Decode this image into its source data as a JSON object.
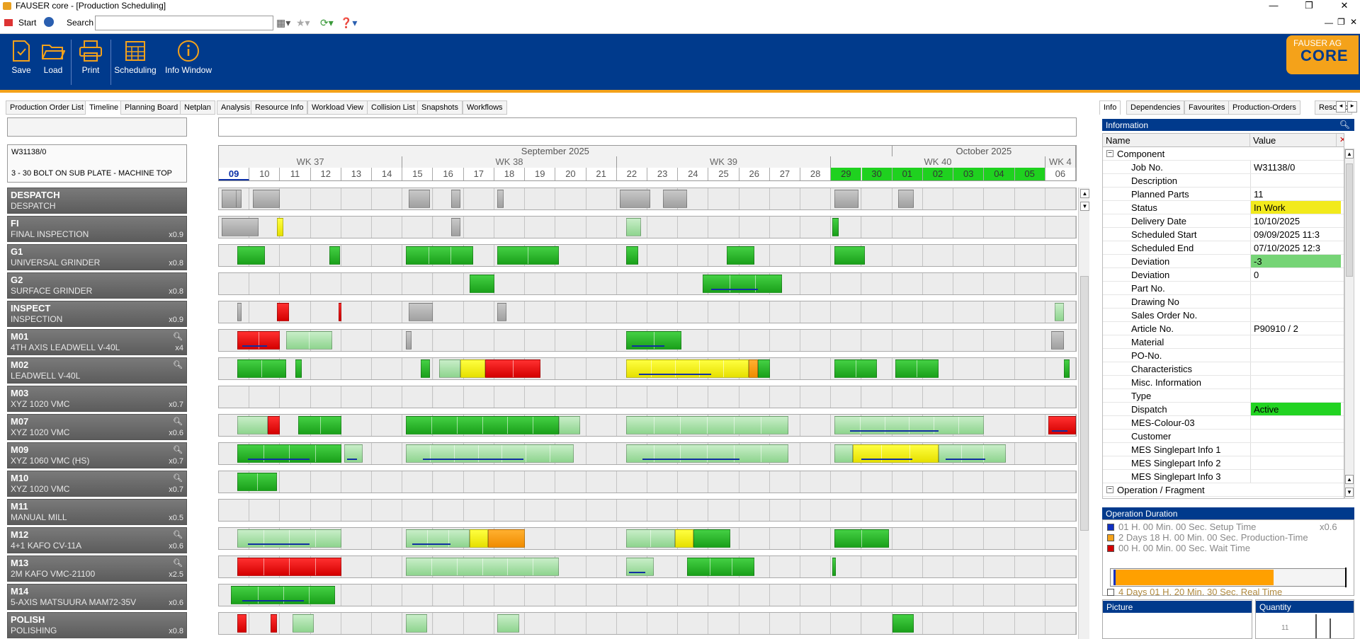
{
  "window": {
    "title": "FAUSER core - [Production Scheduling]"
  },
  "menubar": {
    "start": "Start",
    "search_label": "Search",
    "search_value": ""
  },
  "ribbon": {
    "buttons": [
      {
        "id": "save",
        "label": "Save"
      },
      {
        "id": "load",
        "label": "Load"
      },
      {
        "id": "print",
        "label": "Print"
      },
      {
        "id": "scheduling",
        "label": "Scheduling"
      },
      {
        "id": "info",
        "label": "Info Window"
      }
    ],
    "logo_line1": "FAUSER AG",
    "logo_line2": "CORE",
    "accent": "#003a8c",
    "brand_orange": "#f4a21a"
  },
  "tabs": [
    "Production Order List",
    "Timeline",
    "Planning Board",
    "Netplan",
    "Analysis",
    "Resource Info",
    "Workload View",
    "Collision List",
    "Snapshots",
    "Workflows"
  ],
  "active_tab": "Timeline",
  "job": {
    "id": "W31138/0",
    "description": "3 - 30 BOLT ON SUB PLATE -  MACHINE TOP"
  },
  "resources": [
    {
      "code": "DESPATCH",
      "name": "DESPATCH",
      "factor": "",
      "mag": false
    },
    {
      "code": "FI",
      "name": "FINAL INSPECTION",
      "factor": "x0.9",
      "mag": false
    },
    {
      "code": "G1",
      "name": "UNIVERSAL GRINDER",
      "factor": "x0.8",
      "mag": false
    },
    {
      "code": "G2",
      "name": "SURFACE GRINDER",
      "factor": "x0.8",
      "mag": false
    },
    {
      "code": "INSPECT",
      "name": "INSPECTION",
      "factor": "x0.9",
      "mag": false
    },
    {
      "code": "M01",
      "name": "4TH AXIS LEADWELL V-40L",
      "factor": "x4",
      "mag": true
    },
    {
      "code": "M02",
      "name": "LEADWELL V-40L",
      "factor": "",
      "mag": true
    },
    {
      "code": "M03",
      "name": "XYZ 1020 VMC",
      "factor": "x0.7",
      "mag": false
    },
    {
      "code": "M07",
      "name": "XYZ 1020 VMC",
      "factor": "x0.6",
      "mag": true
    },
    {
      "code": "M09",
      "name": "XYZ 1060 VMC (HS)",
      "factor": "x0.7",
      "mag": true
    },
    {
      "code": "M10",
      "name": "XYZ 1020 VMC",
      "factor": "x0.7",
      "mag": true
    },
    {
      "code": "M11",
      "name": "MANUAL MILL",
      "factor": "x0.5",
      "mag": false
    },
    {
      "code": "M12",
      "name": "4+1 KAFO CV-11A",
      "factor": "x0.6",
      "mag": true
    },
    {
      "code": "M13",
      "name": "2M KAFO VMC-21100",
      "factor": "x2.5",
      "mag": true
    },
    {
      "code": "M14",
      "name": "5-AXIS MATSUURA MAM72-35V",
      "factor": "x0.6",
      "mag": false
    },
    {
      "code": "POLISH",
      "name": "POLISHING",
      "factor": "x0.8",
      "mag": false
    }
  ],
  "timeline": {
    "months": [
      {
        "label": "September 2025",
        "days": 22
      },
      {
        "label": "October 2025",
        "days": 6
      }
    ],
    "weeks": [
      {
        "label": "WK 37",
        "days": 6
      },
      {
        "label": "WK 38",
        "days": 7
      },
      {
        "label": "WK 39",
        "days": 7
      },
      {
        "label": "WK 40",
        "days": 7
      },
      {
        "label": "WK 4",
        "days": 1
      }
    ],
    "days": [
      "09",
      "10",
      "11",
      "12",
      "13",
      "14",
      "15",
      "16",
      "17",
      "18",
      "19",
      "20",
      "21",
      "22",
      "23",
      "24",
      "25",
      "26",
      "27",
      "28",
      "29",
      "30",
      "01",
      "02",
      "03",
      "04",
      "05",
      "06"
    ],
    "today_index": 0,
    "highlight_days": [
      20,
      21,
      22,
      23,
      24,
      25,
      26
    ],
    "rows": [
      [
        [
          0.1,
          0.5,
          "gr"
        ],
        [
          0.55,
          0.2,
          "gr"
        ],
        [
          1.1,
          0.9,
          "gr"
        ],
        [
          6.2,
          0.7,
          "gr"
        ],
        [
          7.6,
          0.3,
          "gr"
        ],
        [
          9.1,
          0.2,
          "gr"
        ],
        [
          13.1,
          1.0,
          "gr"
        ],
        [
          14.5,
          0.8,
          "gr"
        ],
        [
          20.1,
          0.8,
          "gr"
        ],
        [
          22.2,
          0.5,
          "gr"
        ]
      ],
      [
        [
          0.1,
          1.2,
          "gr"
        ],
        [
          1.9,
          0.2,
          "y1"
        ],
        [
          7.6,
          0.3,
          "gr"
        ],
        [
          13.3,
          0.5,
          "g2"
        ],
        [
          20.05,
          0.2,
          "g1"
        ]
      ],
      [
        [
          0.6,
          0.9,
          "g1"
        ],
        [
          3.6,
          0.35,
          "g1"
        ],
        [
          6.1,
          2.2,
          "g1"
        ],
        [
          9.1,
          2.0,
          "g1"
        ],
        [
          13.3,
          0.4,
          "g1"
        ],
        [
          16.6,
          0.9,
          "g1"
        ],
        [
          20.1,
          1.0,
          "g1"
        ]
      ],
      [
        [
          8.2,
          0.8,
          "g1"
        ],
        [
          15.8,
          2.6,
          "g1",
          true
        ]
      ],
      [
        [
          0.6,
          0.15,
          "gr"
        ],
        [
          1.9,
          0.4,
          "r1"
        ],
        [
          3.9,
          0.1,
          "r1"
        ],
        [
          6.2,
          0.8,
          "gr"
        ],
        [
          9.1,
          0.3,
          "gr"
        ],
        [
          27.3,
          0.3,
          "g2"
        ]
      ],
      [
        [
          0.6,
          1.4,
          "r1",
          true
        ],
        [
          2.2,
          1.5,
          "g2"
        ],
        [
          6.1,
          0.2,
          "gr"
        ],
        [
          13.3,
          1.8,
          "g1",
          true
        ],
        [
          27.2,
          0.4,
          "gr"
        ]
      ],
      [
        [
          0.6,
          1.6,
          "g1"
        ],
        [
          2.5,
          0.2,
          "g1"
        ],
        [
          6.6,
          0.3,
          "g1"
        ],
        [
          7.2,
          0.7,
          "g2"
        ],
        [
          7.9,
          0.8,
          "y1"
        ],
        [
          8.7,
          1.8,
          "r1"
        ],
        [
          13.3,
          4.0,
          "y1",
          true
        ],
        [
          17.3,
          0.3,
          "o1"
        ],
        [
          17.6,
          0.4,
          "g1"
        ],
        [
          20.1,
          1.4,
          "g1"
        ],
        [
          22.1,
          1.4,
          "g1"
        ],
        [
          27.6,
          0.2,
          "g1"
        ]
      ],
      [],
      [
        [
          0.6,
          1.0,
          "g2"
        ],
        [
          1.6,
          0.4,
          "r1"
        ],
        [
          2.6,
          1.4,
          "g1"
        ],
        [
          6.1,
          5.0,
          "g1"
        ],
        [
          11.1,
          0.7,
          "g2"
        ],
        [
          13.3,
          5.3,
          "g2"
        ],
        [
          20.1,
          4.9,
          "g2",
          true
        ],
        [
          27.1,
          0.9,
          "r1",
          true
        ]
      ],
      [
        [
          0.6,
          3.4,
          "g1",
          true
        ],
        [
          4.1,
          0.6,
          "g2",
          true
        ],
        [
          6.1,
          5.5,
          "g2",
          true
        ],
        [
          13.3,
          5.3,
          "g2",
          true
        ],
        [
          20.1,
          0.6,
          "g2"
        ],
        [
          20.7,
          2.8,
          "y1",
          true
        ],
        [
          23.5,
          2.2,
          "g2",
          true
        ]
      ],
      [
        [
          0.6,
          1.3,
          "g1"
        ]
      ],
      [],
      [
        [
          0.6,
          3.4,
          "g2",
          true
        ],
        [
          6.1,
          2.1,
          "g2",
          true
        ],
        [
          8.2,
          0.6,
          "y1"
        ],
        [
          8.8,
          1.2,
          "o1"
        ],
        [
          13.3,
          1.6,
          "g2"
        ],
        [
          14.9,
          0.6,
          "y1"
        ],
        [
          15.5,
          1.2,
          "g1"
        ],
        [
          20.1,
          1.8,
          "g1"
        ]
      ],
      [
        [
          0.6,
          3.4,
          "r1"
        ],
        [
          6.1,
          5.0,
          "g2"
        ],
        [
          13.3,
          0.9,
          "g2",
          true
        ],
        [
          15.3,
          2.2,
          "g1"
        ],
        [
          20.05,
          0.1,
          "g1"
        ]
      ],
      [
        [
          0.4,
          3.4,
          "g1",
          true
        ]
      ],
      [
        [
          0.6,
          0.3,
          "r1"
        ],
        [
          1.7,
          0.2,
          "r1"
        ],
        [
          2.4,
          0.7,
          "g2"
        ],
        [
          6.1,
          0.7,
          "g2"
        ],
        [
          9.1,
          0.7,
          "g2"
        ],
        [
          22.0,
          0.7,
          "g1"
        ]
      ]
    ]
  },
  "info": {
    "tabs": [
      "Info",
      "Dependencies",
      "Favourites",
      "Production-Orders",
      "Resourc"
    ],
    "header": "Information",
    "col_name": "Name",
    "col_value": "Value",
    "section_component": "Component",
    "section_operation": "Operation / Fragment",
    "rows": [
      {
        "k": "Job No.",
        "v": "W31138/0",
        "c": ""
      },
      {
        "k": "Description",
        "v": "",
        "c": ""
      },
      {
        "k": "Planned Parts",
        "v": "11",
        "c": ""
      },
      {
        "k": "Status",
        "v": "In Work",
        "c": "#f2ea1c"
      },
      {
        "k": "Delivery Date",
        "v": "10/10/2025",
        "c": ""
      },
      {
        "k": "Scheduled Start",
        "v": "09/09/2025 11:3",
        "c": ""
      },
      {
        "k": "Scheduled End",
        "v": "07/10/2025 12:3",
        "c": ""
      },
      {
        "k": "Deviation",
        "v": "-3",
        "c": "#76d476"
      },
      {
        "k": "Deviation",
        "v": "0",
        "c": ""
      },
      {
        "k": "Part No.",
        "v": "",
        "c": ""
      },
      {
        "k": "Drawing No",
        "v": "",
        "c": ""
      },
      {
        "k": "Sales Order No.",
        "v": "",
        "c": ""
      },
      {
        "k": "Article No.",
        "v": "P90910 / 2",
        "c": ""
      },
      {
        "k": "Material",
        "v": "",
        "c": ""
      },
      {
        "k": "PO-No.",
        "v": "",
        "c": ""
      },
      {
        "k": "Characteristics",
        "v": "",
        "c": ""
      },
      {
        "k": "Misc. Information",
        "v": "",
        "c": ""
      },
      {
        "k": "Type",
        "v": "",
        "c": ""
      },
      {
        "k": "Dispatch",
        "v": "Active",
        "c": "#22d322"
      },
      {
        "k": "MES-Colour-03",
        "v": "",
        "c": ""
      },
      {
        "k": "Customer",
        "v": "",
        "c": ""
      },
      {
        "k": "MES Singlepart Info 1",
        "v": "",
        "c": ""
      },
      {
        "k": "MES Singlepart Info 2",
        "v": "",
        "c": ""
      },
      {
        "k": "MES Singlepart Info 3",
        "v": "",
        "c": ""
      }
    ]
  },
  "operation_duration": {
    "header": "Operation Duration",
    "setup": "01 H. 00 Min. 00 Sec. Setup Time",
    "production": "2 Days 18 H. 00 Min. 00 Sec. Production-Time",
    "wait": "00 H. 00 Min. 00 Sec. Wait Time",
    "real": "4 Days 01 H. 20 Min. 30 Sec. Real Time",
    "factor": "x0.6",
    "progress_fraction": 0.68
  },
  "picture": {
    "header": "Picture"
  },
  "quantity": {
    "header": "Quantity",
    "value": "11"
  }
}
